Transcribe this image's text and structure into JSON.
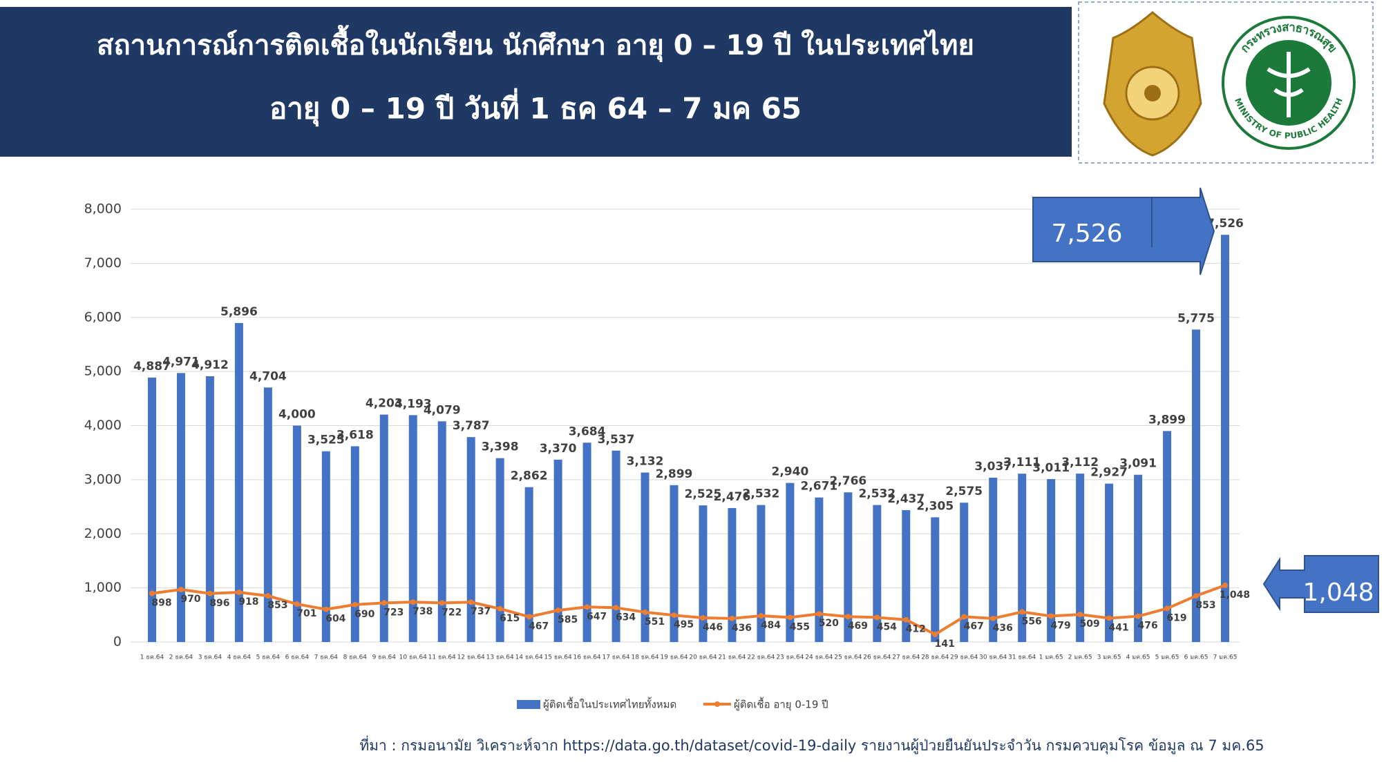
{
  "header": {
    "title_line1": "สถานการณ์การติดเชื้อในนักเรียน นักศึกษา อายุ 0 – 19 ปี ในประเทศไทย",
    "title_line2": "อายุ 0 – 19 ปี วันที่ 1 ธค 64 – 7 มค 65"
  },
  "logos": {
    "moph_th": "กระทรวงสาธารณสุข",
    "moph_en": "MINISTRY OF PUBLIC HEALTH"
  },
  "chart_data": {
    "type": "bar-line",
    "categories": [
      "1 ธค.64",
      "2 ธค.64",
      "3 ธค.64",
      "4 ธค.64",
      "5 ธค.64",
      "6 ธค.64",
      "7 ธค.64",
      "8 ธค.64",
      "9 ธค.64",
      "10 ธค.64",
      "11 ธค.64",
      "12 ธค.64",
      "13 ธค.64",
      "14 ธค.64",
      "15 ธค.64",
      "16 ธค.64",
      "17 ธค.64",
      "18 ธค.64",
      "19 ธค.64",
      "20 ธค.64",
      "21 ธค.64",
      "22 ธค.64",
      "23 ธค.64",
      "24 ธค.64",
      "25 ธค.64",
      "26 ธค.64",
      "27 ธค.64",
      "28 ธค.64",
      "29 ธค.64",
      "30 ธค.64",
      "31 ธค.64",
      "1 มค.65",
      "2 มค.65",
      "3 มค.65",
      "4 มค.65",
      "5 มค.65",
      "6 มค.65",
      "7 มค.65"
    ],
    "series": [
      {
        "name": "ผู้ติดเชื้อในประเทศไทยทั้งหมด",
        "color": "#4472c4",
        "kind": "bar",
        "values": [
          4887,
          4971,
          4912,
          5896,
          4704,
          4000,
          3525,
          3618,
          4203,
          4193,
          4079,
          3787,
          3398,
          2862,
          3370,
          3684,
          3537,
          3132,
          2899,
          2525,
          2476,
          2532,
          2940,
          2671,
          2766,
          2532,
          2437,
          2305,
          2575,
          3037,
          3111,
          3011,
          3112,
          2927,
          3091,
          3899,
          5775,
          7526
        ],
        "value_labels": [
          "4,887",
          "4,971",
          "4,912",
          "5,896",
          "4,704",
          "4,000",
          "3,525",
          "3,618",
          "4,203",
          "4,193",
          "4,079",
          "3,787",
          "3,398",
          "2,862",
          "3,370",
          "3,684",
          "3,537",
          "3,132",
          "2,899",
          "2,525",
          "2,476",
          "2,532",
          "2,940",
          "2,671",
          "2,766",
          "2,532",
          "2,437",
          "2,305",
          "2,575",
          "3,037",
          "3,111",
          "3,011",
          "3,112",
          "2,927",
          "3,091",
          "3,899",
          "5,775",
          "7,526"
        ]
      },
      {
        "name": "ผู้ติดเชื้อ อายุ 0-19 ปี",
        "color": "#ed7d31",
        "kind": "line",
        "values": [
          898,
          970,
          896,
          918,
          853,
          701,
          604,
          690,
          723,
          738,
          722,
          737,
          615,
          467,
          585,
          647,
          634,
          551,
          495,
          446,
          436,
          484,
          455,
          520,
          469,
          454,
          412,
          141,
          467,
          436,
          556,
          479,
          509,
          441,
          476,
          619,
          853,
          1048
        ],
        "value_labels": [
          "898",
          "970",
          "896",
          "918",
          "853",
          "701",
          "604",
          "690",
          "723",
          "738",
          "722",
          "737",
          "615",
          "467",
          "585",
          "647",
          "634",
          "551",
          "495",
          "446",
          "436",
          "484",
          "455",
          "520",
          "469",
          "454",
          "412",
          "141",
          "467",
          "436",
          "556",
          "479",
          "509",
          "441",
          "476",
          "619",
          "853",
          "1,048"
        ]
      }
    ],
    "ylim": [
      0,
      8000
    ],
    "yticks": [
      0,
      {
        "value": 1000,
        "label": "1,000"
      },
      {
        "value": 2000,
        "label": "2,000"
      },
      {
        "value": 3000,
        "label": "3,000"
      },
      {
        "value": 4000,
        "label": "4,000"
      },
      {
        "value": 5000,
        "label": "5,000"
      },
      {
        "value": 6000,
        "label": "6,000"
      },
      {
        "value": 7000,
        "label": "7,000"
      },
      {
        "value": 8000,
        "label": "8,000"
      }
    ],
    "grid": true,
    "annotations": [
      "7,526",
      "1,048"
    ],
    "source": "ที่มา : กรมอนามัย วิเคราะห์จาก https://data.go.th/dataset/covid-19-daily รายงานผู้ป่วยยืนยันประจำวัน กรมควบคุมโรค ข้อมูล ณ 7 มค.65"
  }
}
